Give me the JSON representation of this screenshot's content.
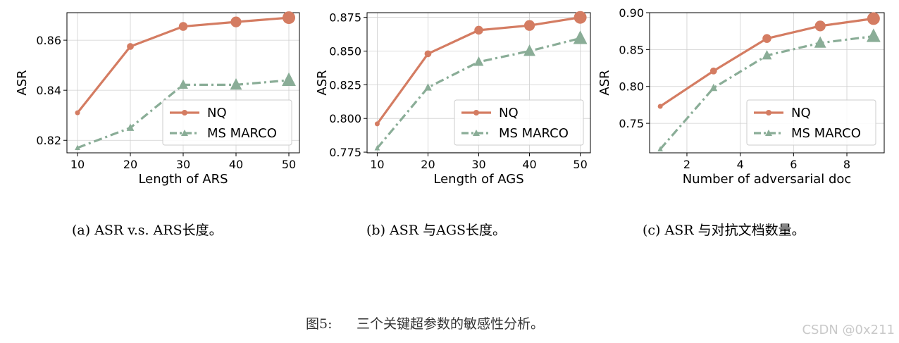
{
  "chart_data": [
    {
      "type": "line",
      "xlabel": "Length of ARS",
      "ylabel": "ASR",
      "x": [
        10,
        20,
        30,
        40,
        50
      ],
      "xticks": [
        10,
        20,
        30,
        40,
        50
      ],
      "xlim": [
        8,
        52
      ],
      "ylim": [
        0.815,
        0.871
      ],
      "yticks": [
        0.82,
        0.84,
        0.86
      ],
      "ytick_labels": [
        "0.82",
        "0.84",
        "0.86"
      ],
      "grid": true,
      "legend": "lower-right",
      "series": [
        {
          "name": "NQ",
          "values": [
            0.831,
            0.8575,
            0.8655,
            0.8673,
            0.869
          ],
          "color": "#d47c62",
          "style": "solid",
          "marker": "circle"
        },
        {
          "name": "MS MARCO",
          "values": [
            0.817,
            0.825,
            0.8422,
            0.8422,
            0.844
          ],
          "color": "#8aad97",
          "style": "dashdot",
          "marker": "triangle"
        }
      ],
      "caption": "(a) ASR v.s. ARS长度。"
    },
    {
      "type": "line",
      "xlabel": "Length of AGS",
      "ylabel": "ASR",
      "x": [
        10,
        20,
        30,
        40,
        50
      ],
      "xticks": [
        10,
        20,
        30,
        40,
        50
      ],
      "xlim": [
        8,
        52
      ],
      "ylim": [
        0.7745,
        0.8785
      ],
      "yticks": [
        0.775,
        0.8,
        0.825,
        0.85,
        0.875
      ],
      "ytick_labels": [
        "0.775",
        "0.800",
        "0.825",
        "0.850",
        "0.875"
      ],
      "grid": true,
      "legend": "lower-right",
      "series": [
        {
          "name": "NQ",
          "values": [
            0.796,
            0.848,
            0.8655,
            0.869,
            0.875
          ],
          "color": "#d47c62",
          "style": "solid",
          "marker": "circle"
        },
        {
          "name": "MS MARCO",
          "values": [
            0.778,
            0.823,
            0.842,
            0.85,
            0.8595
          ],
          "color": "#8aad97",
          "style": "dashdot",
          "marker": "triangle"
        }
      ],
      "caption": "(b) ASR 与AGS长度。"
    },
    {
      "type": "line",
      "xlabel": "Number of adversarial doc",
      "ylabel": "ASR",
      "x": [
        1,
        3,
        5,
        7,
        9
      ],
      "xticks": [
        2,
        4,
        6,
        8
      ],
      "xlim": [
        0.6,
        9.4
      ],
      "ylim": [
        0.71,
        0.9
      ],
      "yticks": [
        0.75,
        0.8,
        0.85,
        0.9
      ],
      "ytick_labels": [
        "0.75",
        "0.80",
        "0.85",
        "0.90"
      ],
      "grid": true,
      "legend": "lower-right",
      "series": [
        {
          "name": "NQ",
          "values": [
            0.773,
            0.821,
            0.865,
            0.882,
            0.892
          ],
          "color": "#d47c62",
          "style": "solid",
          "marker": "circle"
        },
        {
          "name": "MS MARCO",
          "values": [
            0.715,
            0.798,
            0.842,
            0.859,
            0.868
          ],
          "color": "#8aad97",
          "style": "dashdot",
          "marker": "triangle"
        }
      ],
      "caption": "(c) ASR 与对抗文档数量。"
    }
  ],
  "figure": {
    "caption_label": "图5:",
    "caption_text": "三个关键超参数的敏感性分析。",
    "watermark": "CSDN @0x211"
  }
}
